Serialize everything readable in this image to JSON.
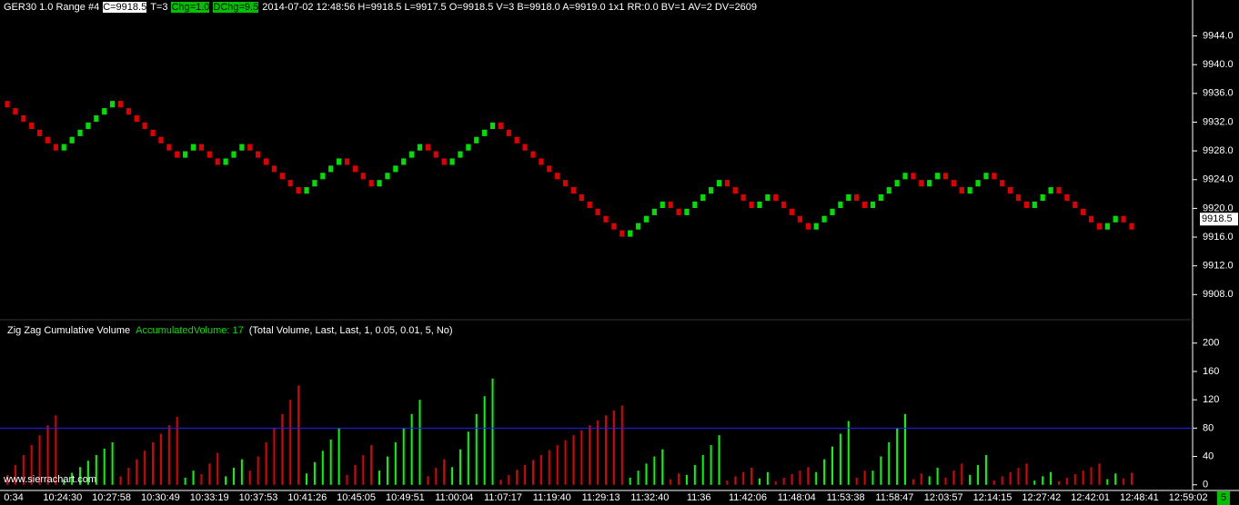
{
  "chart_data": [
    {
      "type": "candlestick",
      "title": "GER30  1.0 Range  #4",
      "header_fields": [
        "C=9918.5",
        "T=3",
        "Chg=1.0",
        "DChg=9.5",
        "2014-07-02 12:48:56 H=9918.5 L=9917.5 O=9918.5 V=3 B=9918.0 A=9919.0 1x1 RR:0.0 BV=1 AV=2 DV=2609"
      ],
      "open": [
        9935,
        9934,
        9933,
        9932,
        9931,
        9930,
        9929,
        9928,
        9929,
        9930,
        9931,
        9932,
        9933,
        9934,
        9935,
        9934,
        9933,
        9932,
        9931,
        9930,
        9929,
        9928,
        9927,
        9928,
        9929,
        9928,
        9927,
        9926,
        9927,
        9928,
        9929,
        9928,
        9927,
        9926,
        9925,
        9924,
        9923,
        9922,
        9923,
        9924,
        9925,
        9926,
        9927,
        9926,
        9925,
        9924,
        9923,
        9924,
        9925,
        9926,
        9927,
        9928,
        9929,
        9928,
        9927,
        9926,
        9927,
        9928,
        9929,
        9930,
        9931,
        9932,
        9931,
        9930,
        9929,
        9928,
        9927,
        9926,
        9925,
        9924,
        9923,
        9922,
        9921,
        9920,
        9919,
        9918,
        9917,
        9916,
        9917,
        9918,
        9919,
        9920,
        9921,
        9920,
        9919,
        9920,
        9921,
        9922,
        9923,
        9924,
        9923,
        9922,
        9921,
        9920,
        9921,
        9922,
        9921,
        9920,
        9919,
        9918,
        9917,
        9918,
        9919,
        9920,
        9921,
        9922,
        9921,
        9920,
        9921,
        9922,
        9923,
        9924,
        9925,
        9924,
        9923,
        9924,
        9925,
        9924,
        9923,
        9922,
        9923,
        9924,
        9925,
        9924,
        9923,
        9922,
        9921,
        9920,
        9921,
        9922,
        9923,
        9922,
        9921,
        9920,
        9919,
        9918,
        9917,
        9918,
        9919,
        9918
      ],
      "close": [
        9934,
        9933,
        9932,
        9931,
        9930,
        9929,
        9928,
        9929,
        9930,
        9931,
        9932,
        9933,
        9934,
        9935,
        9934,
        9933,
        9932,
        9931,
        9930,
        9929,
        9928,
        9927,
        9928,
        9929,
        9928,
        9927,
        9926,
        9927,
        9928,
        9929,
        9928,
        9927,
        9926,
        9925,
        9924,
        9923,
        9922,
        9923,
        9924,
        9925,
        9926,
        9927,
        9926,
        9925,
        9924,
        9923,
        9924,
        9925,
        9926,
        9927,
        9928,
        9929,
        9928,
        9927,
        9926,
        9927,
        9928,
        9929,
        9930,
        9931,
        9932,
        9931,
        9930,
        9929,
        9928,
        9927,
        9926,
        9925,
        9924,
        9923,
        9922,
        9921,
        9920,
        9919,
        9918,
        9917,
        9916,
        9917,
        9918,
        9919,
        9920,
        9921,
        9920,
        9919,
        9920,
        9921,
        9922,
        9923,
        9924,
        9923,
        9922,
        9921,
        9920,
        9921,
        9922,
        9921,
        9920,
        9919,
        9918,
        9917,
        9918,
        9919,
        9920,
        9921,
        9922,
        9921,
        9920,
        9921,
        9922,
        9923,
        9924,
        9925,
        9924,
        9923,
        9924,
        9925,
        9924,
        9923,
        9922,
        9923,
        9924,
        9925,
        9924,
        9923,
        9922,
        9921,
        9920,
        9921,
        9922,
        9923,
        9922,
        9921,
        9920,
        9919,
        9918,
        9917,
        9918,
        9919,
        9918,
        9917
      ],
      "up_color": "#00e000",
      "down_color": "#e00000",
      "ylim": [
        9904.5,
        9949
      ],
      "yticks": [
        {
          "value": 9908,
          "label": "9908.0"
        },
        {
          "value": 9912,
          "label": "9912.0"
        },
        {
          "value": 9916,
          "label": "9916.0"
        },
        {
          "value": 9920,
          "label": "9920.0"
        },
        {
          "value": 9924,
          "label": "9924.0"
        },
        {
          "value": 9928,
          "label": "9928.0"
        },
        {
          "value": 9932,
          "label": "9932.0"
        },
        {
          "value": 9936,
          "label": "9936.0"
        },
        {
          "value": 9940,
          "label": "9940.0"
        },
        {
          "value": 9944,
          "label": "9944.0"
        }
      ],
      "last_price": 9918.5,
      "x_labels": [
        "0:34",
        "10:24:30",
        "10:27:58",
        "10:30:49",
        "10:33:19",
        "10:37:53",
        "10:41:26",
        "10:45:05",
        "10:49:51",
        "11:00:04",
        "11:07:17",
        "11:19:40",
        "11:29:13",
        "11:32:40",
        "11:36",
        "11:42:06",
        "11:48:04",
        "11:53:38",
        "11:58:47",
        "12:03:57",
        "12:14:15",
        "12:27:42",
        "12:42:01",
        "12:48:41",
        "12:59:02"
      ]
    },
    {
      "type": "bar",
      "title": "Zig Zag Cumulative Volume",
      "subtitle": "AccumulatedVolume: 17",
      "note": "(Total Volume, Last, Last, 1, 0.05, 0.01, 5, No)",
      "values": [
        14,
        28,
        42,
        56,
        70,
        84,
        98,
        8,
        17,
        25,
        34,
        42,
        51,
        60,
        12,
        24,
        36,
        48,
        60,
        72,
        84,
        96,
        10,
        20,
        15,
        30,
        45,
        12,
        24,
        36,
        20,
        40,
        60,
        80,
        100,
        120,
        140,
        16,
        32,
        48,
        64,
        80,
        14,
        28,
        42,
        56,
        20,
        40,
        60,
        80,
        100,
        120,
        12,
        24,
        36,
        25,
        50,
        75,
        100,
        125,
        150,
        7,
        14,
        21,
        28,
        35,
        42,
        49,
        56,
        63,
        70,
        77,
        84,
        91,
        98,
        105,
        112,
        10,
        20,
        30,
        40,
        50,
        8,
        16,
        14,
        28,
        42,
        56,
        70,
        6,
        12,
        18,
        24,
        9,
        18,
        5,
        10,
        15,
        20,
        25,
        18,
        36,
        54,
        72,
        90,
        10,
        20,
        20,
        40,
        60,
        80,
        100,
        8,
        16,
        12,
        24,
        10,
        20,
        30,
        14,
        28,
        42,
        6,
        12,
        18,
        24,
        30,
        6,
        12,
        18,
        5,
        10,
        15,
        20,
        25,
        30,
        8,
        16,
        9,
        17
      ],
      "ylim": [
        -8,
        233
      ],
      "yticks": [
        0,
        40,
        80,
        120,
        160,
        200
      ],
      "reference_line": 80,
      "reference_color": "#2020ff"
    }
  ],
  "footer": {
    "watermark": "www.sierrachart.com",
    "corner": "5"
  }
}
